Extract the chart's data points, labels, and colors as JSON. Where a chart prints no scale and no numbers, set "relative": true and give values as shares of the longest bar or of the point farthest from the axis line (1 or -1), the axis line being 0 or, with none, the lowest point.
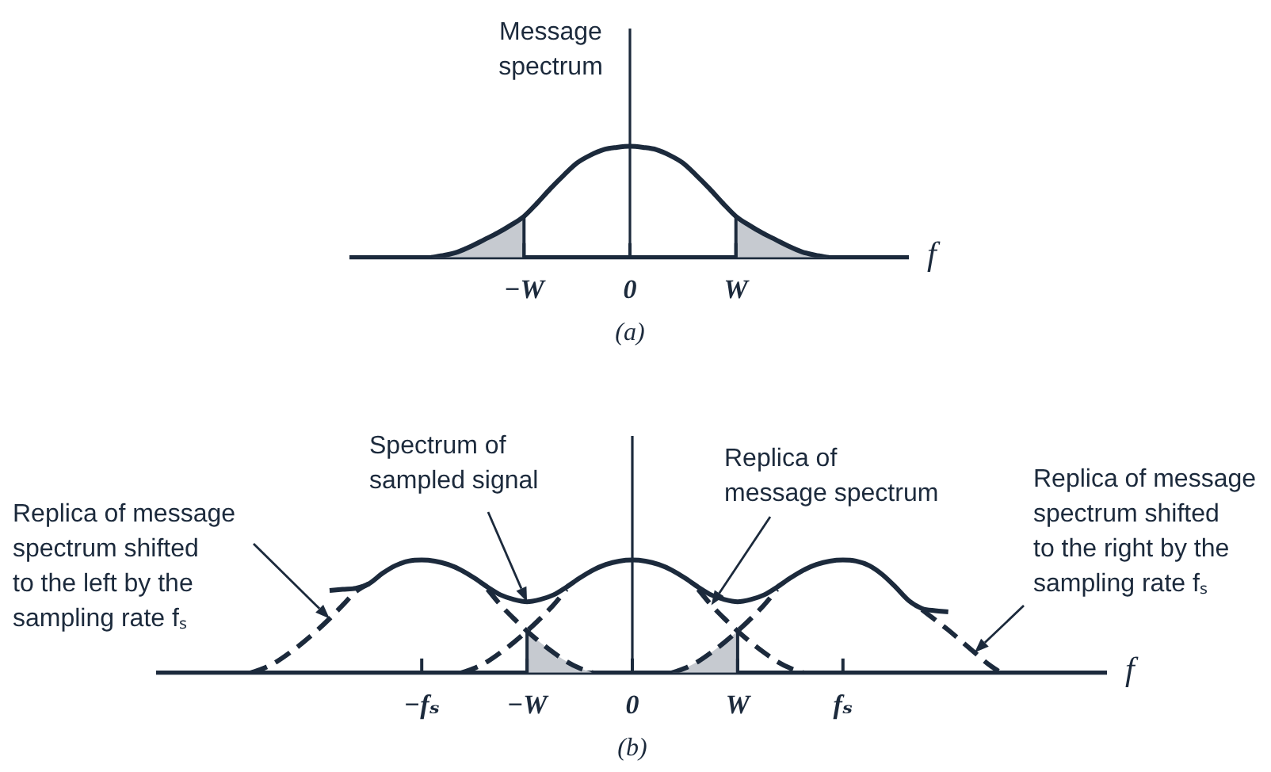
{
  "chart_data": [
    {
      "type": "line",
      "title": "(a)",
      "xlabel": "f",
      "ylabel": "Message spectrum",
      "relative": true,
      "line_style": "solid",
      "categories": [
        null,
        null,
        null,
        null,
        null,
        null,
        null,
        null,
        null,
        null,
        null,
        null,
        null,
        "−W",
        null,
        null,
        null,
        null,
        null,
        null,
        null,
        "0",
        null,
        null,
        null,
        null,
        null,
        null,
        null,
        "W",
        null,
        null,
        null,
        null,
        null,
        null,
        null,
        null,
        null,
        null,
        null,
        null,
        null
      ],
      "series": [
        {
          "color": "#1c2a3c",
          "values": [
            null,
            null,
            null,
            null,
            null,
            null,
            0,
            0.02,
            0.05,
            0.1,
            0.16,
            0.22,
            0.29,
            0.37,
            0.49,
            0.62,
            0.74,
            0.85,
            0.92,
            0.97,
            0.99,
            1,
            0.99,
            0.97,
            0.92,
            0.85,
            0.74,
            0.62,
            0.49,
            0.37,
            0.29,
            0.22,
            0.16,
            0.1,
            0.05,
            0.02,
            0,
            null,
            null,
            null,
            null,
            null,
            null
          ]
        },
        {
          "type": "area",
          "color": "#c6cad0",
          "values": [
            null,
            null,
            null,
            null,
            null,
            null,
            0,
            0.02,
            0.05,
            0.1,
            0.16,
            0.22,
            0.29,
            0.37,
            null,
            null,
            null,
            null,
            null,
            null,
            null,
            null,
            null,
            null,
            null,
            null,
            null,
            null,
            null,
            0.37,
            0.29,
            0.22,
            0.16,
            0.1,
            0.05,
            0.02,
            0,
            null,
            null,
            null,
            null,
            null,
            null
          ]
        }
      ]
    },
    {
      "type": "line",
      "title": "(b)",
      "xlabel": "f",
      "relative": true,
      "line_style": "solid",
      "categories": [
        null,
        null,
        null,
        null,
        null,
        null,
        null,
        null,
        null,
        null,
        null,
        null,
        null,
        null,
        null,
        null,
        null,
        null,
        null,
        null,
        "−fₛ",
        null,
        null,
        null,
        null,
        null,
        null,
        null,
        "−W",
        null,
        null,
        null,
        null,
        null,
        null,
        null,
        "0",
        null,
        null,
        null,
        null,
        null,
        null,
        null,
        "W",
        null,
        null,
        null,
        null,
        null,
        null,
        null,
        "fₛ",
        null,
        null,
        null,
        null,
        null,
        null,
        null,
        null,
        null,
        null,
        null,
        null,
        null,
        null,
        null,
        null,
        null,
        null,
        null,
        null
      ],
      "series": [
        {
          "name": "Spectrum of sampled signal",
          "color": "#1c2a3c",
          "values": [
            null,
            null,
            null,
            null,
            null,
            null,
            null,
            null,
            null,
            null,
            null,
            null,
            null,
            0.73,
            0.74,
            0.75,
            0.79,
            0.88,
            0.95,
            0.99,
            1,
            0.99,
            0.96,
            0.91,
            0.84,
            0.76,
            0.69,
            0.65,
            0.63,
            0.65,
            0.69,
            0.76,
            0.84,
            0.91,
            0.96,
            0.99,
            1,
            0.99,
            0.96,
            0.91,
            0.84,
            0.76,
            0.69,
            0.65,
            0.63,
            0.65,
            0.69,
            0.76,
            0.84,
            0.91,
            0.96,
            0.99,
            1,
            0.99,
            0.95,
            0.87,
            0.76,
            0.64,
            0.57,
            0.55,
            0.54,
            null,
            null,
            null,
            null,
            null,
            null,
            null,
            null,
            null,
            null,
            null,
            null
          ]
        },
        {
          "name": "Replica of message spectrum shifted to the left by the sampling rate fₛ",
          "color": "#1c2a3c",
          "line_style": "dashed",
          "values": [
            null,
            null,
            null,
            null,
            null,
            null,
            null,
            0,
            0.04,
            0.1,
            0.18,
            0.27,
            0.37,
            0.48,
            0.6,
            0.72,
            0.79,
            null,
            null,
            null,
            null,
            null,
            null,
            null,
            null,
            0.74,
            0.6,
            0.48,
            0.37,
            0.27,
            0.18,
            0.1,
            0.04,
            0,
            null,
            null,
            null,
            null,
            null,
            null,
            null,
            null,
            null,
            null,
            null,
            null,
            null,
            null,
            null,
            null,
            null,
            null,
            null,
            null,
            null,
            null,
            null,
            null,
            null,
            null,
            null,
            null,
            null,
            null,
            null,
            null,
            null,
            null,
            null,
            null,
            null,
            null,
            null
          ]
        },
        {
          "name": "Replica of message spectrum",
          "color": "#1c2a3c",
          "line_style": "dashed",
          "values": [
            null,
            null,
            null,
            null,
            null,
            null,
            null,
            null,
            null,
            null,
            null,
            null,
            null,
            null,
            null,
            null,
            null,
            null,
            null,
            null,
            null,
            null,
            null,
            0,
            0.04,
            0.1,
            0.18,
            0.27,
            0.37,
            0.48,
            0.6,
            0.74,
            null,
            null,
            null,
            null,
            null,
            null,
            null,
            null,
            null,
            0.74,
            0.6,
            0.48,
            0.37,
            0.27,
            0.18,
            0.1,
            0.04,
            0,
            null,
            null,
            null,
            null,
            null,
            null,
            null,
            null,
            null,
            null,
            null,
            null,
            null,
            null,
            null,
            null,
            null,
            null,
            null,
            null,
            null,
            null,
            null
          ]
        },
        {
          "name": "Replica of message spectrum shifted to the right by the sampling rate fₛ",
          "color": "#1c2a3c",
          "line_style": "dashed",
          "values": [
            null,
            null,
            null,
            null,
            null,
            null,
            null,
            null,
            null,
            null,
            null,
            null,
            null,
            null,
            null,
            null,
            null,
            null,
            null,
            null,
            null,
            null,
            null,
            null,
            null,
            null,
            null,
            null,
            null,
            null,
            null,
            null,
            null,
            null,
            null,
            null,
            null,
            null,
            null,
            0,
            0.04,
            0.1,
            0.18,
            0.27,
            0.37,
            0.48,
            0.6,
            0.74,
            null,
            null,
            null,
            null,
            null,
            null,
            null,
            null,
            null,
            null,
            0.56,
            0.47,
            0.38,
            0.28,
            0.18,
            0.08,
            0,
            null,
            null,
            null,
            null,
            null,
            null,
            null,
            null
          ]
        },
        {
          "type": "area",
          "color": "#c6cad0",
          "values": [
            null,
            null,
            null,
            null,
            null,
            null,
            null,
            null,
            null,
            null,
            null,
            null,
            null,
            null,
            null,
            null,
            null,
            null,
            null,
            null,
            null,
            null,
            null,
            null,
            null,
            null,
            null,
            null,
            0.37,
            0.27,
            0.18,
            0.1,
            0.04,
            0,
            null,
            null,
            null,
            null,
            null,
            0,
            0.04,
            0.1,
            0.18,
            0.27,
            0.37,
            null,
            null,
            null,
            null,
            null,
            null,
            null,
            null,
            null,
            null,
            null,
            null,
            null,
            null,
            null,
            null,
            null,
            null,
            null,
            null,
            null,
            null,
            null,
            null,
            null,
            null,
            null,
            null
          ]
        }
      ]
    }
  ]
}
